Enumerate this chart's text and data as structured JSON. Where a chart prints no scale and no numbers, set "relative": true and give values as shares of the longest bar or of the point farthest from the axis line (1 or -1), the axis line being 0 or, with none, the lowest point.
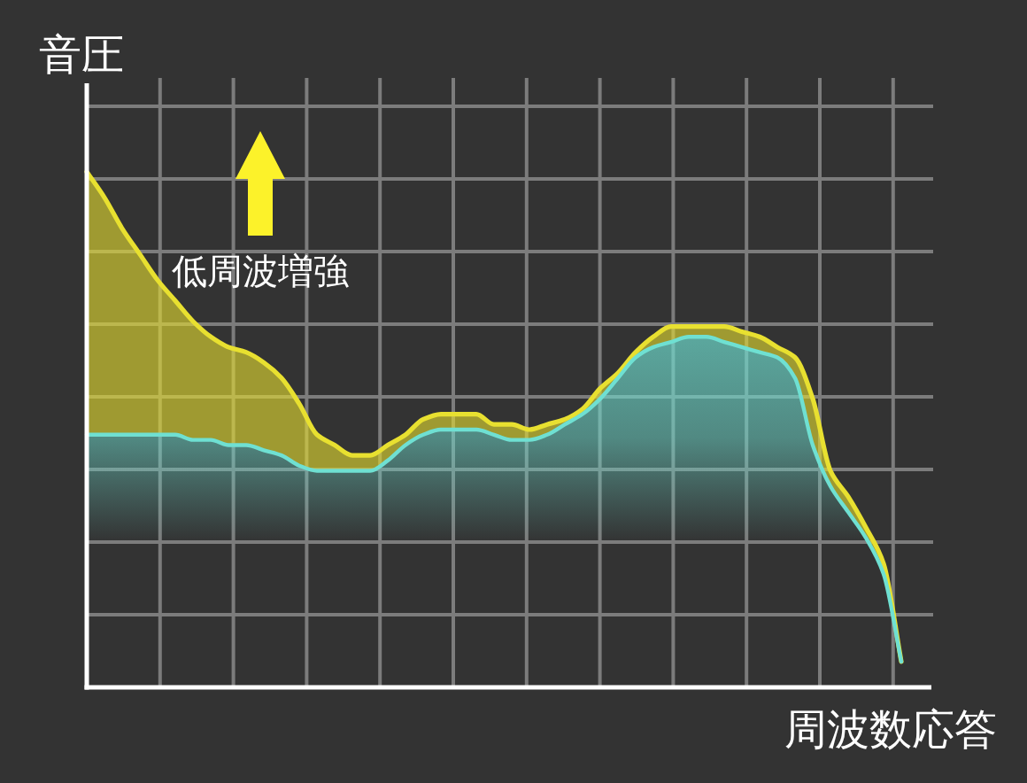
{
  "chart_data": {
    "type": "area",
    "relative": true,
    "ylabel": "音圧",
    "xlabel": "周波数応答",
    "annotations": [
      "低周波増強"
    ],
    "grid": true,
    "categories": [
      null,
      null,
      null,
      null,
      null,
      null,
      null,
      null,
      null,
      null,
      null,
      null,
      null,
      null,
      null,
      null,
      null,
      null,
      null,
      null,
      null,
      null,
      null,
      null,
      null,
      null,
      null,
      null,
      null,
      null,
      null,
      null,
      null,
      null,
      null,
      null,
      null,
      null,
      null,
      null,
      null,
      null,
      null,
      null,
      null,
      null,
      null
    ],
    "series": [
      {
        "color": "#e8e030",
        "values": [
          1.0,
          0.95,
          0.89,
          0.84,
          0.79,
          0.75,
          0.71,
          0.68,
          0.66,
          0.65,
          0.63,
          0.6,
          0.55,
          0.49,
          0.47,
          0.45,
          0.45,
          0.47,
          0.49,
          0.52,
          0.53,
          0.53,
          0.53,
          0.51,
          0.51,
          0.5,
          0.51,
          0.52,
          0.54,
          0.58,
          0.61,
          0.65,
          0.68,
          0.7,
          0.7,
          0.7,
          0.7,
          0.69,
          0.68,
          0.66,
          0.64,
          0.56,
          0.42,
          0.37,
          0.31,
          0.24,
          0.05
        ]
      },
      {
        "color": "#6fe0d2",
        "values": [
          0.49,
          0.49,
          0.49,
          0.49,
          0.49,
          0.49,
          0.48,
          0.48,
          0.47,
          0.47,
          0.46,
          0.45,
          0.43,
          0.42,
          0.42,
          0.42,
          0.42,
          0.44,
          0.47,
          0.49,
          0.5,
          0.5,
          0.5,
          0.49,
          0.48,
          0.48,
          0.49,
          0.51,
          0.53,
          0.56,
          0.6,
          0.64,
          0.66,
          0.67,
          0.68,
          0.68,
          0.67,
          0.66,
          0.65,
          0.64,
          0.6,
          0.47,
          0.39,
          0.34,
          0.29,
          0.22,
          0.05
        ]
      }
    ]
  }
}
